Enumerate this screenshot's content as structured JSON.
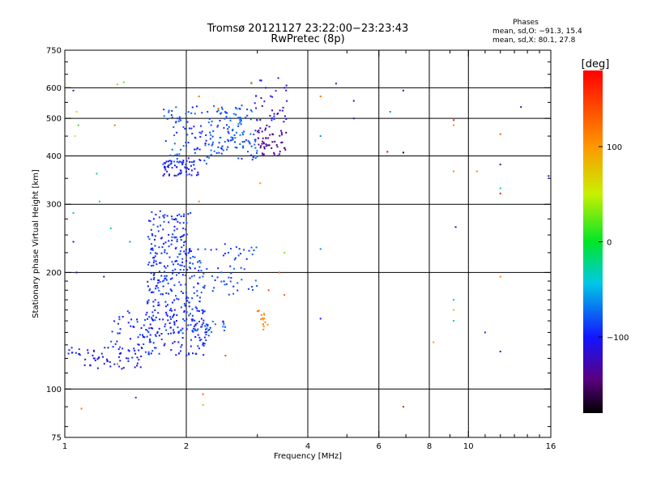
{
  "chart_data": {
    "type": "scatter",
    "title": "Tromsø 20121127 23:22:00−23:23:43",
    "subtitle": "RwPretec (8p)",
    "xlabel": "Frequency [MHz]",
    "ylabel": "Stationary phase Virtual Height [km]",
    "x_scale": "log2",
    "y_scale": "log",
    "xlim": [
      1,
      16
    ],
    "ylim": [
      75,
      750
    ],
    "x_ticks": [
      1,
      2,
      4,
      6,
      8,
      10,
      16
    ],
    "x_tick_labels": [
      "1",
      "2",
      "4",
      "6",
      "8",
      "10",
      "16"
    ],
    "x_minor_ticks": [
      3,
      5,
      7,
      9,
      11,
      12,
      13,
      14,
      15
    ],
    "y_ticks": [
      75,
      100,
      200,
      300,
      400,
      500,
      600,
      750
    ],
    "y_tick_labels": [
      "75",
      "100",
      "200",
      "300",
      "400",
      "500",
      "600",
      "750"
    ],
    "y_minor_ticks": [
      80,
      90,
      110,
      120,
      130,
      140,
      150,
      160,
      170,
      180,
      190,
      225,
      250,
      275,
      350,
      450,
      550,
      650,
      700
    ],
    "x_gridlines": [
      2,
      4,
      6,
      8,
      10
    ],
    "y_gridlines": [
      100,
      200,
      300,
      400,
      500,
      600
    ],
    "grid": true,
    "info_text": {
      "line1": "Phases",
      "line2": "mean, sd,O: −91.3, 15.4",
      "line3": "mean, sd,X:  80.1, 27.8"
    },
    "colorbar": {
      "unit": "[deg]",
      "range": [
        -180,
        180
      ],
      "ticks": [
        100,
        0,
        -100
      ],
      "tick_labels": [
        "100",
        "0",
        "−100"
      ]
    },
    "groups": [
      {
        "f_range": [
          1.02,
          1.12
        ],
        "h_range": [
          122,
          130
        ],
        "n": 10,
        "phase": -95,
        "spread": 10
      },
      {
        "f_range": [
          1.12,
          1.55
        ],
        "h_range": [
          112,
          128
        ],
        "n": 55,
        "phase": -105,
        "spread": 12
      },
      {
        "f_range": [
          1.3,
          1.6
        ],
        "h_range": [
          128,
          160
        ],
        "n": 35,
        "phase": -95,
        "spread": 15
      },
      {
        "f_range": [
          1.55,
          2.3
        ],
        "h_range": [
          122,
          152
        ],
        "n": 120,
        "phase": -95,
        "spread": 15
      },
      {
        "f_range": [
          1.6,
          2.05
        ],
        "h_range": [
          150,
          290
        ],
        "n": 260,
        "phase": -92,
        "spread": 15
      },
      {
        "f_range": [
          2.05,
          2.25
        ],
        "h_range": [
          140,
          230
        ],
        "n": 60,
        "phase": -90,
        "spread": 15
      },
      {
        "f_range": [
          2.3,
          3.0
        ],
        "h_range": [
          175,
          240
        ],
        "n": 50,
        "phase": -85,
        "spread": 15
      },
      {
        "f_range": [
          2.25,
          2.5
        ],
        "h_range": [
          140,
          150
        ],
        "n": 12,
        "phase": -85,
        "spread": 15
      },
      {
        "f_range": [
          1.75,
          2.15
        ],
        "h_range": [
          355,
          390
        ],
        "n": 55,
        "phase": -100,
        "spread": 10
      },
      {
        "f_range": [
          1.75,
          2.25
        ],
        "h_range": [
          380,
          540
        ],
        "n": 80,
        "phase": -88,
        "spread": 15
      },
      {
        "f_range": [
          2.25,
          3.0
        ],
        "h_range": [
          390,
          540
        ],
        "n": 130,
        "phase": -82,
        "spread": 15
      },
      {
        "f_range": [
          3.0,
          3.55
        ],
        "h_range": [
          400,
          470
        ],
        "n": 50,
        "phase": -140,
        "spread": 12
      },
      {
        "f_range": [
          2.9,
          3.55
        ],
        "h_range": [
          470,
          640
        ],
        "n": 40,
        "phase": -110,
        "spread": 20
      },
      {
        "f_range": [
          3.0,
          3.2
        ],
        "h_range": [
          140,
          160
        ],
        "n": 14,
        "phase": 110,
        "spread": 15
      }
    ],
    "points": [
      {
        "f": 1.05,
        "h": 590,
        "phase": -120
      },
      {
        "f": 1.07,
        "h": 520,
        "phase": 60
      },
      {
        "f": 1.08,
        "h": 480,
        "phase": 10
      },
      {
        "f": 1.06,
        "h": 450,
        "phase": 50
      },
      {
        "f": 1.2,
        "h": 360,
        "phase": -20
      },
      {
        "f": 1.22,
        "h": 305,
        "phase": -20
      },
      {
        "f": 1.05,
        "h": 285,
        "phase": -30
      },
      {
        "f": 1.3,
        "h": 260,
        "phase": -20
      },
      {
        "f": 1.33,
        "h": 480,
        "phase": 120
      },
      {
        "f": 1.35,
        "h": 612,
        "phase": 30
      },
      {
        "f": 1.4,
        "h": 620,
        "phase": 20
      },
      {
        "f": 1.45,
        "h": 240,
        "phase": -60
      },
      {
        "f": 1.05,
        "h": 240,
        "phase": -100
      },
      {
        "f": 1.07,
        "h": 200,
        "phase": -120
      },
      {
        "f": 1.25,
        "h": 195,
        "phase": -140
      },
      {
        "f": 1.1,
        "h": 89,
        "phase": 120
      },
      {
        "f": 1.5,
        "h": 95,
        "phase": -90
      },
      {
        "f": 1.35,
        "h": 116,
        "phase": 120
      },
      {
        "f": 2.2,
        "h": 97,
        "phase": 130
      },
      {
        "f": 2.2,
        "h": 91,
        "phase": 80
      },
      {
        "f": 2.5,
        "h": 122,
        "phase": 140
      },
      {
        "f": 2.15,
        "h": 305,
        "phase": 110
      },
      {
        "f": 2.15,
        "h": 570,
        "phase": 120
      },
      {
        "f": 2.4,
        "h": 530,
        "phase": 130
      },
      {
        "f": 2.9,
        "h": 620,
        "phase": 40
      },
      {
        "f": 3.05,
        "h": 340,
        "phase": 100
      },
      {
        "f": 3.2,
        "h": 180,
        "phase": 140
      },
      {
        "f": 3.5,
        "h": 175,
        "phase": 130
      },
      {
        "f": 3.5,
        "h": 225,
        "phase": 30
      },
      {
        "f": 3.4,
        "h": 200,
        "phase": 140
      },
      {
        "f": 4.3,
        "h": 570,
        "phase": 120
      },
      {
        "f": 4.3,
        "h": 450,
        "phase": -60
      },
      {
        "f": 4.3,
        "h": 230,
        "phase": -60
      },
      {
        "f": 4.3,
        "h": 152,
        "phase": -100
      },
      {
        "f": 4.7,
        "h": 615,
        "phase": -100
      },
      {
        "f": 5.2,
        "h": 555,
        "phase": -140
      },
      {
        "f": 5.2,
        "h": 500,
        "phase": -120
      },
      {
        "f": 6.3,
        "h": 410,
        "phase": 180
      },
      {
        "f": 6.4,
        "h": 520,
        "phase": -60
      },
      {
        "f": 6.9,
        "h": 590,
        "phase": -130
      },
      {
        "f": 6.9,
        "h": 408,
        "phase": -170
      },
      {
        "f": 6.9,
        "h": 90,
        "phase": 170
      },
      {
        "f": 8.2,
        "h": 132,
        "phase": 100
      },
      {
        "f": 9.2,
        "h": 495,
        "phase": 170
      },
      {
        "f": 9.2,
        "h": 480,
        "phase": 110
      },
      {
        "f": 9.2,
        "h": 365,
        "phase": 110
      },
      {
        "f": 9.3,
        "h": 262,
        "phase": -100
      },
      {
        "f": 9.2,
        "h": 170,
        "phase": -20
      },
      {
        "f": 9.2,
        "h": 160,
        "phase": 30
      },
      {
        "f": 9.2,
        "h": 150,
        "phase": -30
      },
      {
        "f": 10.5,
        "h": 365,
        "phase": 110
      },
      {
        "f": 11.0,
        "h": 140,
        "phase": -90
      },
      {
        "f": 12.0,
        "h": 455,
        "phase": 130
      },
      {
        "f": 12.0,
        "h": 380,
        "phase": -140
      },
      {
        "f": 12.0,
        "h": 330,
        "phase": -30
      },
      {
        "f": 12.0,
        "h": 320,
        "phase": 170
      },
      {
        "f": 12.0,
        "h": 195,
        "phase": 110
      },
      {
        "f": 12.0,
        "h": 125,
        "phase": -110
      },
      {
        "f": 13.5,
        "h": 535,
        "phase": -110
      },
      {
        "f": 15.8,
        "h": 355,
        "phase": -110
      }
    ]
  }
}
